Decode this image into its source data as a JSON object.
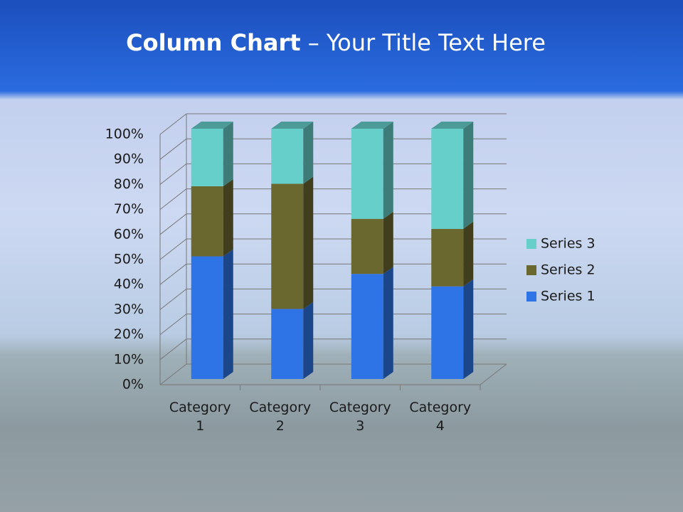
{
  "chart_data": {
    "type": "stacked_bar_100_3d",
    "title": [
      "Column Chart",
      "– Your Title Text Here"
    ],
    "categories": [
      "Category 1",
      "Category 2",
      "Category 3",
      "Category 4"
    ],
    "series": [
      {
        "name": "Series 1",
        "color": "#2e74e6",
        "values": [
          49,
          28,
          42,
          37
        ]
      },
      {
        "name": "Series 2",
        "color": "#6a672f",
        "values": [
          28,
          50,
          22,
          23
        ]
      },
      {
        "name": "Series 3",
        "color": "#66cfca",
        "values": [
          23,
          22,
          36,
          40
        ]
      }
    ],
    "ylim": [
      0,
      100
    ],
    "yticks": [
      {
        "value": 0,
        "label": "0%"
      },
      {
        "value": 10,
        "label": "10%"
      },
      {
        "value": 20,
        "label": "20%"
      },
      {
        "value": 30,
        "label": "30%"
      },
      {
        "value": 40,
        "label": "40%"
      },
      {
        "value": 50,
        "label": "50%"
      },
      {
        "value": 60,
        "label": "60%"
      },
      {
        "value": 70,
        "label": "70%"
      },
      {
        "value": 80,
        "label": "80%"
      },
      {
        "value": 90,
        "label": "90%"
      },
      {
        "value": 100,
        "label": "100%"
      }
    ],
    "grid": true,
    "legend": "right"
  }
}
